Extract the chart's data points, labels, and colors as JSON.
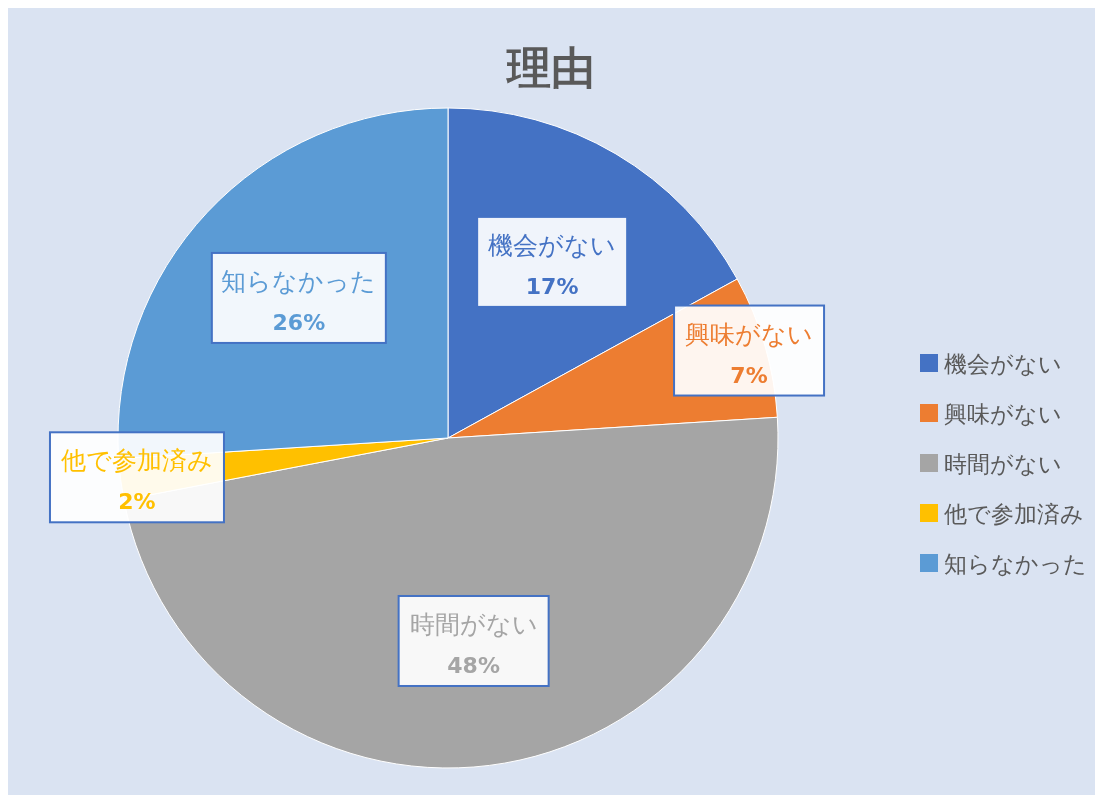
{
  "chart_data": {
    "type": "pie",
    "title": "理由",
    "categories": [
      "機会がない",
      "興味がない",
      "時間がない",
      "他で参加済み",
      "知らなかった"
    ],
    "values": [
      17,
      7,
      48,
      2,
      26
    ],
    "value_labels": [
      "17%",
      "7%",
      "48%",
      "2%",
      "26%"
    ],
    "colors": [
      "#4472c4",
      "#ed7d31",
      "#a5a5a5",
      "#ffc000",
      "#5b9bd5"
    ],
    "legend": "right"
  }
}
